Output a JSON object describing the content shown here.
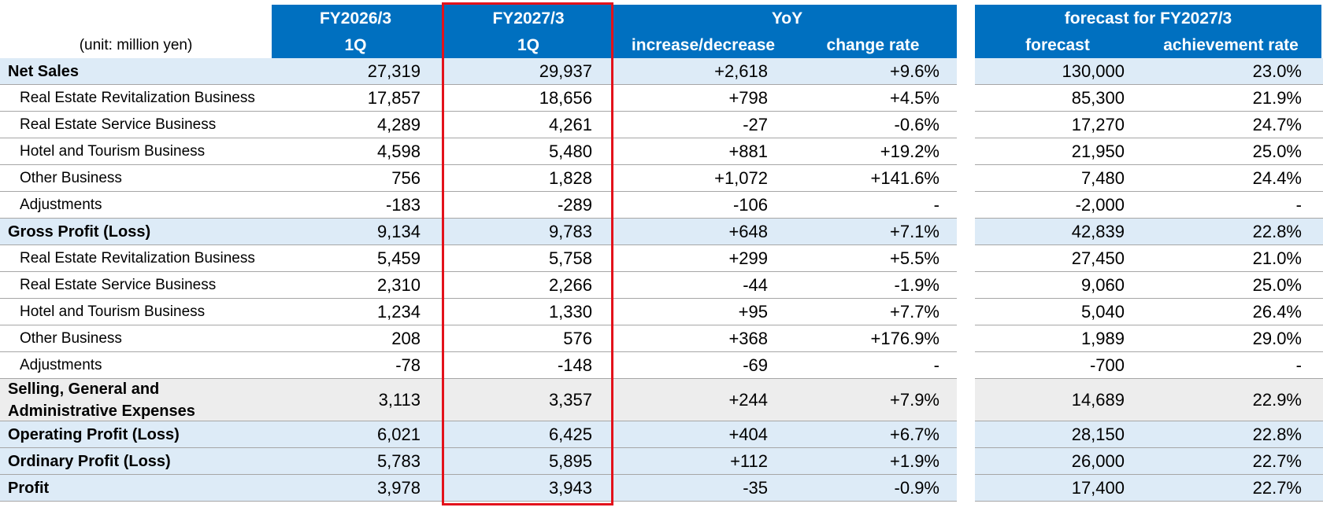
{
  "header": {
    "prev_period": "FY2026/3",
    "prev_quarter": "1Q",
    "curr_period": "FY2027/3",
    "curr_quarter": "1Q",
    "yoy": "YoY",
    "yoy_change": "increase/decrease",
    "yoy_rate": "change rate",
    "forecast_title": "forecast for FY2027/3",
    "forecast": "forecast",
    "achievement": "achievement rate",
    "unit": "(unit: million yen)"
  },
  "rows": [
    {
      "label": "Net Sales",
      "style": "main",
      "prev": "27,319",
      "curr": "29,937",
      "change": "+2,618",
      "rate": "+9.6%",
      "forecast": "130,000",
      "achievement": "23.0%"
    },
    {
      "label": "Real Estate Revitalization Business",
      "style": "sub",
      "prev": "17,857",
      "curr": "18,656",
      "change": "+798",
      "rate": "+4.5%",
      "forecast": "85,300",
      "achievement": "21.9%"
    },
    {
      "label": "Real Estate Service Business",
      "style": "sub",
      "prev": "4,289",
      "curr": "4,261",
      "change": "-27",
      "rate": "-0.6%",
      "forecast": "17,270",
      "achievement": "24.7%"
    },
    {
      "label": "Hotel and Tourism Business",
      "style": "sub",
      "prev": "4,598",
      "curr": "5,480",
      "change": "+881",
      "rate": "+19.2%",
      "forecast": "21,950",
      "achievement": "25.0%"
    },
    {
      "label": "Other Business",
      "style": "sub",
      "prev": "756",
      "curr": "1,828",
      "change": "+1,072",
      "rate": "+141.6%",
      "forecast": "7,480",
      "achievement": "24.4%"
    },
    {
      "label": "Adjustments",
      "style": "sub",
      "prev": "-183",
      "curr": "-289",
      "change": "-106",
      "rate": "-",
      "forecast": "-2,000",
      "achievement": "-"
    },
    {
      "label": "Gross Profit (Loss)",
      "style": "main",
      "prev": "9,134",
      "curr": "9,783",
      "change": "+648",
      "rate": "+7.1%",
      "forecast": "42,839",
      "achievement": "22.8%"
    },
    {
      "label": "Real Estate Revitalization Business",
      "style": "sub",
      "prev": "5,459",
      "curr": "5,758",
      "change": "+299",
      "rate": "+5.5%",
      "forecast": "27,450",
      "achievement": "21.0%"
    },
    {
      "label": "Real Estate Service Business",
      "style": "sub",
      "prev": "2,310",
      "curr": "2,266",
      "change": "-44",
      "rate": "-1.9%",
      "forecast": "9,060",
      "achievement": "25.0%"
    },
    {
      "label": "Hotel and Tourism Business",
      "style": "sub",
      "prev": "1,234",
      "curr": "1,330",
      "change": "+95",
      "rate": "+7.7%",
      "forecast": "5,040",
      "achievement": "26.4%"
    },
    {
      "label": "Other Business",
      "style": "sub",
      "prev": "208",
      "curr": "576",
      "change": "+368",
      "rate": "+176.9%",
      "forecast": "1,989",
      "achievement": "29.0%"
    },
    {
      "label": "Adjustments",
      "style": "sub",
      "prev": "-78",
      "curr": "-148",
      "change": "-69",
      "rate": "-",
      "forecast": "-700",
      "achievement": "-"
    },
    {
      "label": "Selling, General and Administrative Expenses",
      "style": "gray",
      "prev": "3,113",
      "curr": "3,357",
      "change": "+244",
      "rate": "+7.9%",
      "forecast": "14,689",
      "achievement": "22.9%"
    },
    {
      "label": "Operating Profit (Loss)",
      "style": "main",
      "prev": "6,021",
      "curr": "6,425",
      "change": "+404",
      "rate": "+6.7%",
      "forecast": "28,150",
      "achievement": "22.8%"
    },
    {
      "label": "Ordinary Profit (Loss)",
      "style": "main",
      "prev": "5,783",
      "curr": "5,895",
      "change": "+112",
      "rate": "+1.9%",
      "forecast": "26,000",
      "achievement": "22.7%"
    },
    {
      "label": "Profit",
      "style": "main",
      "prev": "3,978",
      "curr": "3,943",
      "change": "-35",
      "rate": "-0.9%",
      "forecast": "17,400",
      "achievement": "22.7%"
    }
  ],
  "colors": {
    "header_blue": "#0070c0",
    "band_blue": "#ddebf7",
    "band_gray": "#ededed",
    "highlight_frame": "#e3121b"
  }
}
